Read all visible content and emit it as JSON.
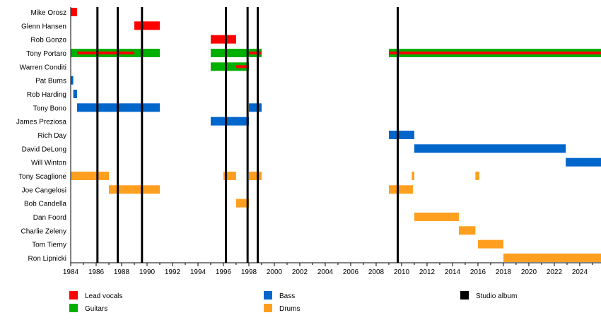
{
  "chart_data": {
    "type": "timeline",
    "xlim": [
      1984,
      2025.67
    ],
    "x_ticks": [
      1984,
      1986,
      1988,
      1990,
      1992,
      1994,
      1996,
      1998,
      2000,
      2002,
      2004,
      2006,
      2008,
      2010,
      2012,
      2014,
      2016,
      2018,
      2020,
      2022,
      2024
    ],
    "members": [
      "Mike Orosz",
      "Glenn Hansen",
      "Rob Gonzo",
      "Tony Portaro",
      "Warren Conditi",
      "Pat Burns",
      "Rob Harding",
      "Tony Bono",
      "James Preziosa",
      "Rich Day",
      "David DeLong",
      "Will Winton",
      "Tony Scaglione",
      "Joe Cangelosi",
      "Bob Candella",
      "Dan Foord",
      "Charlie Zeleny",
      "Tom Tierny",
      "Ron Lipnicki"
    ],
    "roles": [
      {
        "key": "vocals",
        "name": "Lead vocals",
        "color": "#ff0000"
      },
      {
        "key": "guitars",
        "name": "Guitars",
        "color": "#00b000"
      },
      {
        "key": "bass",
        "name": "Bass",
        "color": "#0066cc"
      },
      {
        "key": "drums",
        "name": "Drums",
        "color": "#ff9f1f"
      },
      {
        "key": "album",
        "name": "Studio album",
        "color": "#000000"
      }
    ],
    "bars": [
      {
        "member": "Mike Orosz",
        "role": "vocals",
        "start": 1984,
        "end": 1984.5
      },
      {
        "member": "Glenn Hansen",
        "role": "vocals",
        "start": 1989,
        "end": 1991
      },
      {
        "member": "Rob Gonzo",
        "role": "vocals",
        "start": 1995,
        "end": 1997
      },
      {
        "member": "Tony Portaro",
        "role": "guitars",
        "start": 1984,
        "end": 1991
      },
      {
        "member": "Tony Portaro",
        "role": "guitars",
        "start": 1995,
        "end": 1999
      },
      {
        "member": "Tony Portaro",
        "role": "guitars",
        "start": 2009,
        "end": 2025.67
      },
      {
        "member": "Tony Portaro",
        "role": "vocals",
        "start": 1984.5,
        "end": 1989,
        "thin": true
      },
      {
        "member": "Tony Portaro",
        "role": "vocals",
        "start": 1998,
        "end": 1999,
        "thin": true
      },
      {
        "member": "Tony Portaro",
        "role": "vocals",
        "start": 2009,
        "end": 2025.67,
        "thin": true
      },
      {
        "member": "Warren Conditi",
        "role": "guitars",
        "start": 1995,
        "end": 1998
      },
      {
        "member": "Warren Conditi",
        "role": "vocals",
        "start": 1997,
        "end": 1998,
        "thin": true
      },
      {
        "member": "Pat Burns",
        "role": "bass",
        "start": 1984,
        "end": 1984.2
      },
      {
        "member": "Rob Harding",
        "role": "bass",
        "start": 1984.2,
        "end": 1984.5
      },
      {
        "member": "Tony Bono",
        "role": "bass",
        "start": 1984.5,
        "end": 1991
      },
      {
        "member": "Tony Bono",
        "role": "bass",
        "start": 1998,
        "end": 1999
      },
      {
        "member": "James Preziosa",
        "role": "bass",
        "start": 1995,
        "end": 1998
      },
      {
        "member": "Rich Day",
        "role": "bass",
        "start": 2009,
        "end": 2011
      },
      {
        "member": "David DeLong",
        "role": "bass",
        "start": 2011,
        "end": 2022.9
      },
      {
        "member": "Will Winton",
        "role": "bass",
        "start": 2022.9,
        "end": 2025.67
      },
      {
        "member": "Tony Scaglione",
        "role": "drums",
        "start": 1984,
        "end": 1987
      },
      {
        "member": "Tony Scaglione",
        "role": "drums",
        "start": 1996,
        "end": 1997
      },
      {
        "member": "Tony Scaglione",
        "role": "drums",
        "start": 1998,
        "end": 1999
      },
      {
        "member": "Tony Scaglione",
        "role": "drums",
        "start": 2010.8,
        "end": 2011
      },
      {
        "member": "Tony Scaglione",
        "role": "drums",
        "start": 2015.8,
        "end": 2016.1
      },
      {
        "member": "Joe Cangelosi",
        "role": "drums",
        "start": 1987,
        "end": 1991
      },
      {
        "member": "Joe Cangelosi",
        "role": "drums",
        "start": 2009,
        "end": 2010.9
      },
      {
        "member": "Bob Candella",
        "role": "drums",
        "start": 1997,
        "end": 1998
      },
      {
        "member": "Dan Foord",
        "role": "drums",
        "start": 2011,
        "end": 2014.5
      },
      {
        "member": "Charlie Zeleny",
        "role": "drums",
        "start": 2014.5,
        "end": 2015.8
      },
      {
        "member": "Tom Tierny",
        "role": "drums",
        "start": 2016,
        "end": 2018
      },
      {
        "member": "Ron Lipnicki",
        "role": "drums",
        "start": 2018,
        "end": 2025.67
      }
    ],
    "albums": [
      1986.1,
      1987.7,
      1989.6,
      1996.2,
      1997.9,
      1998.7,
      2009.7
    ],
    "legend_placement": "bottom"
  }
}
